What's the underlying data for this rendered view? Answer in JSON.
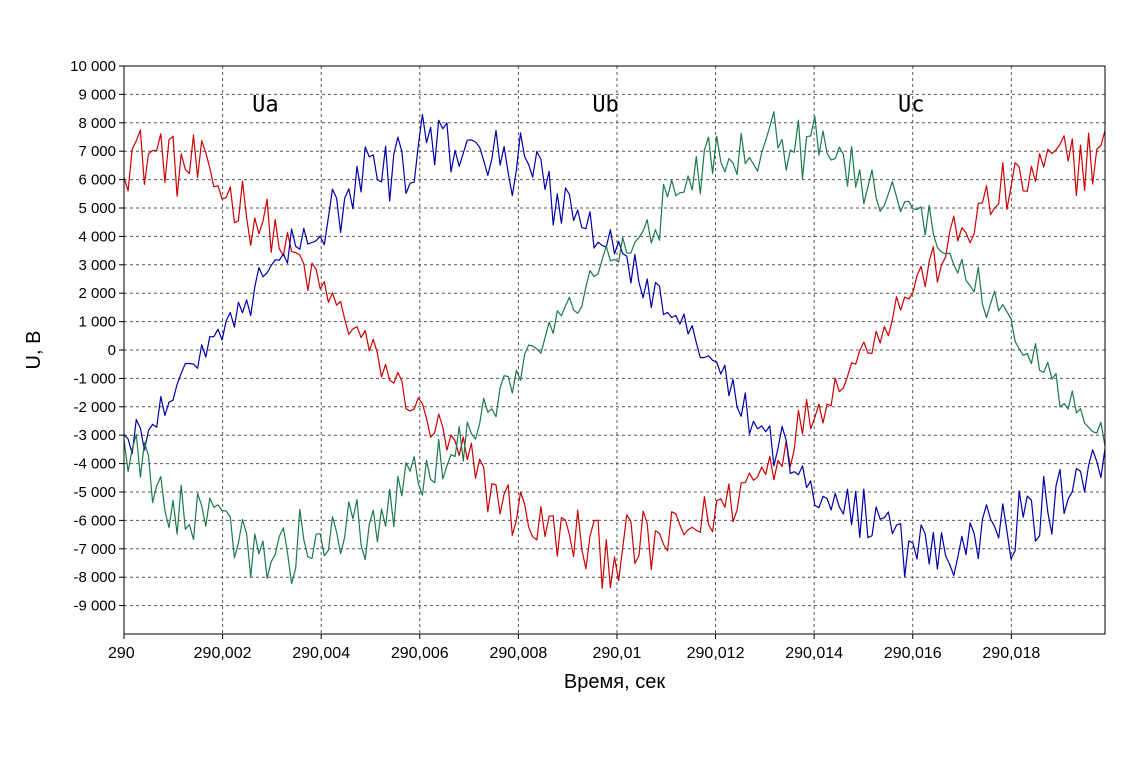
{
  "chart_data": {
    "type": "line",
    "title": "",
    "xlabel": "Время, сек",
    "ylabel": "U, В",
    "xlim": [
      290,
      290.0199
    ],
    "ylim": [
      -10000,
      10000
    ],
    "grid": true,
    "x_ticks": [
      290,
      290.002,
      290.004,
      290.006,
      290.008,
      290.01,
      290.012,
      290.014,
      290.016,
      290.018
    ],
    "x_tick_labels": [
      "290",
      "290,002",
      "290,004",
      "290,006",
      "290,008",
      "290,01",
      "290,012",
      "290,014",
      "290,016",
      "290,018"
    ],
    "y_ticks": [
      10000,
      9000,
      8000,
      7000,
      6000,
      5000,
      4000,
      3000,
      2000,
      1000,
      0,
      -1000,
      -2000,
      -3000,
      -4000,
      -5000,
      -6000,
      -7000,
      -8000,
      -9000
    ],
    "y_tick_labels": [
      "10 000",
      "9 000",
      "8 000",
      "7 000",
      "6 000",
      "5 000",
      "4 000",
      "3 000",
      "2 000",
      "1 000",
      "0",
      "-1 000",
      "-2 000",
      "-3 000",
      "-4 000",
      "-5 000",
      "-6 000",
      "-7 000",
      "-8 000",
      "-9 000"
    ],
    "series": [
      {
        "name": "Ua",
        "color": "#cc0000",
        "phase_deg": 90,
        "amplitude": 7000,
        "noise": 1200,
        "label_at": [
          290.0026,
          8400
        ]
      },
      {
        "name": "Ub",
        "color": "#0000aa",
        "phase_deg": -30,
        "amplitude": 7000,
        "noise": 1200,
        "label_at": [
          290.0095,
          8400
        ]
      },
      {
        "name": "Uc",
        "color": "#1a7a4a",
        "phase_deg": 210,
        "amplitude": 7000,
        "noise": 1200,
        "label_at": [
          290.0157,
          8400
        ]
      }
    ],
    "period": 0.02,
    "samples": 240
  },
  "style": {
    "background": "#ffffff",
    "grid_color": "#555555",
    "axis_color": "#000000"
  }
}
